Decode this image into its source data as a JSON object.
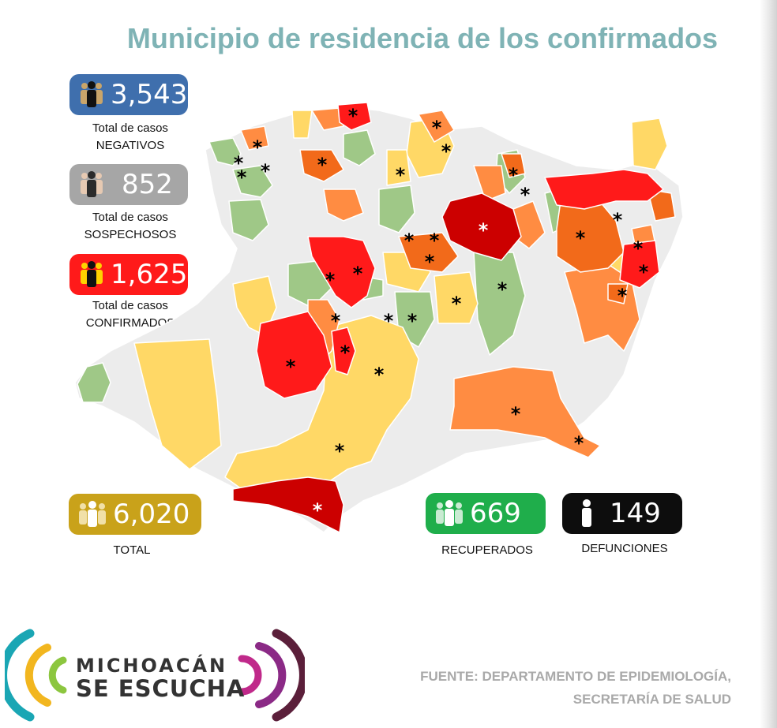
{
  "title": "Municipio de residencia de los confirmados",
  "stats": {
    "negativos": {
      "value": "3,543",
      "label_line1": "Total de casos",
      "label_line2": "NEGATIVOS",
      "color": "#3f6fad"
    },
    "sospechosos": {
      "value": "852",
      "label_line1": "Total de casos",
      "label_line2": "SOSPECHOSOS",
      "color": "#a6a6a6"
    },
    "confirmados": {
      "value": "1,625",
      "label_line1": "Total de casos",
      "label_line2": "CONFIRMADOS",
      "color": "#ff1a1a"
    },
    "total": {
      "value": "6,020",
      "label": "TOTAL",
      "color": "#c9a21a"
    },
    "recuperados": {
      "value": "669",
      "label": "RECUPERADOS",
      "color": "#1fae4b"
    },
    "defunciones": {
      "value": "149",
      "label": "DEFUNCIONES",
      "color": "#0d0d0d"
    }
  },
  "map_legend_colors": {
    "no_cases": "#ececec",
    "low": "#9fc887",
    "medium": "#ffd866",
    "high": "#ff8c42",
    "very_high": "#ff1a1a",
    "highest": "#cc0000"
  },
  "logo": {
    "line1": "MICHOACÁN",
    "line2": "SE ESCUCHA"
  },
  "source": {
    "line1": "FUENTE: DEPARTAMENTO DE EPIDEMIOLOGÍA,",
    "line2": "SECRETARÍA DE SALUD"
  }
}
